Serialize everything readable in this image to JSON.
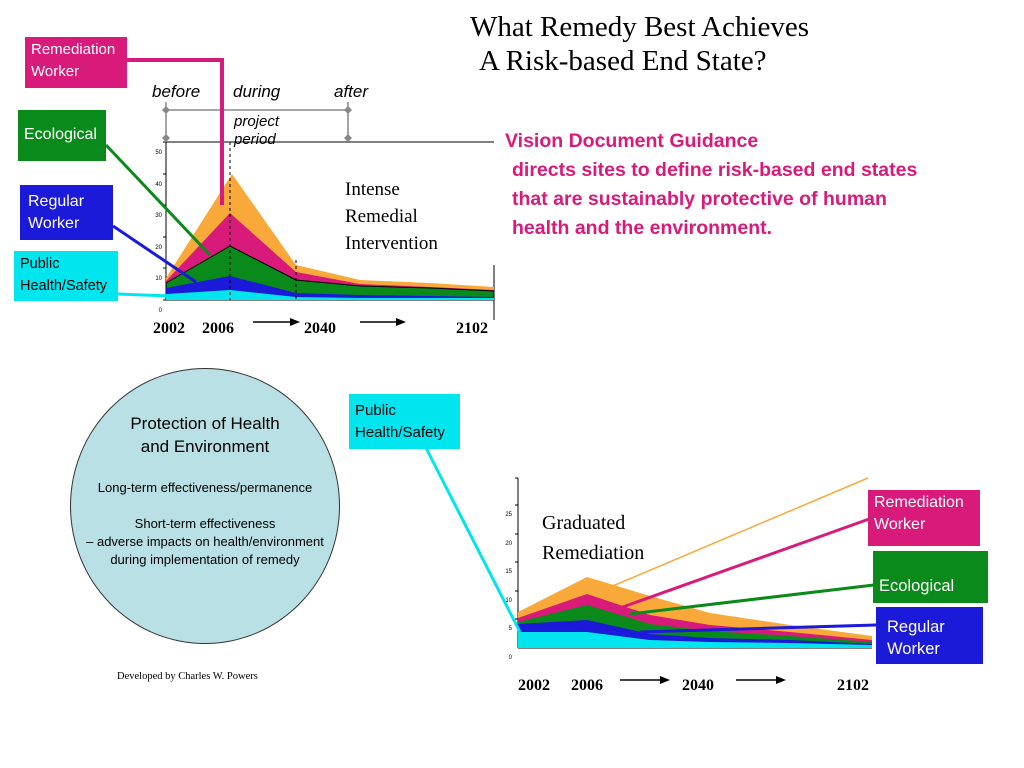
{
  "title": {
    "line1": "What Remedy Best Achieves",
    "line2": "A Risk-based End State?"
  },
  "vision": {
    "line1": "Vision Document Guidance",
    "line2": "directs sites to define risk-based end states",
    "line3": "that are sustainably protective of human",
    "line4": "health and the environment."
  },
  "top_chart": {
    "legend": {
      "remediation_1": "Remediation",
      "remediation_2": "Worker",
      "ecological": "Ecological",
      "regular_1": "Regular",
      "regular_2": "Worker",
      "public_1": "Public",
      "public_2": "Health/Safety"
    },
    "phases": {
      "before": "before",
      "during": "during",
      "after": "after",
      "project_1": "project",
      "project_2": "period"
    },
    "annotation": {
      "line1": "Intense",
      "line2": "Remedial",
      "line3": "Intervention"
    },
    "years": [
      "2002",
      "2006",
      "2040",
      "2102"
    ],
    "yticks": [
      "50",
      "40",
      "30",
      "20",
      "10",
      "0"
    ]
  },
  "bottom_chart": {
    "legend": {
      "public_1": "Public",
      "public_2": "Health/Safety",
      "remediation_1": "Remediation",
      "remediation_2": "Worker",
      "ecological": "Ecological",
      "regular_1": "Regular",
      "regular_2": "Worker"
    },
    "annotation": {
      "line1": "Graduated",
      "line2": "Remediation"
    },
    "years": [
      "2002",
      "2006",
      "2040",
      "2102"
    ],
    "yticks": [
      "25",
      "20",
      "15",
      "10",
      "5",
      "0"
    ]
  },
  "circle": {
    "heading1": "Protection of Health",
    "heading2": "and Environment",
    "item1": "Long-term effectiveness/permanence",
    "item2_1": "Short-term effectiveness",
    "item2_2": "– adverse impacts on health/environment",
    "item2_3": "during implementation of remedy"
  },
  "credit": "Developed by Charles W. Powers",
  "colors": {
    "remediation": "#d81b7a",
    "ecological": "#0a8a1a",
    "regular": "#1a1ad8",
    "public": "#00e5ee",
    "orange": "#f9a93a",
    "circle": "#b9e0e4"
  }
}
